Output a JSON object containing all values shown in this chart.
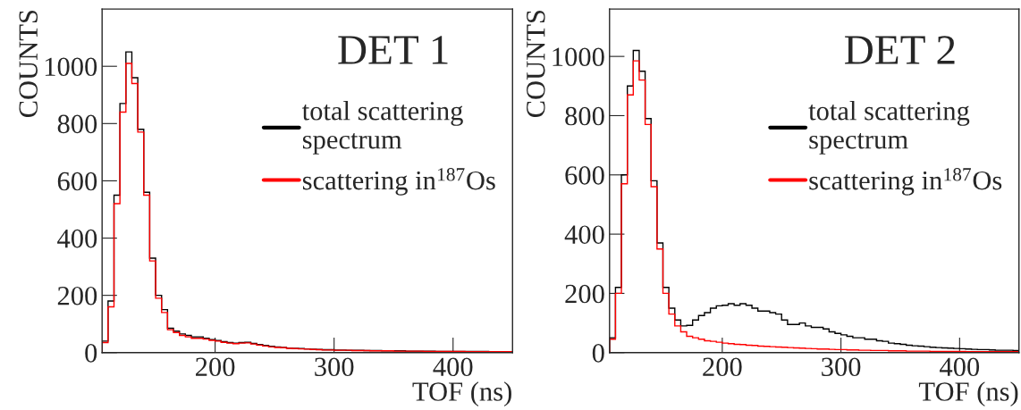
{
  "chart_data": [
    {
      "type": "histogram",
      "title": "DET 1",
      "xlabel": "TOF (ns)",
      "ylabel": "COUNTS",
      "xlim": [
        105,
        450
      ],
      "ylim": [
        0,
        1200
      ],
      "xticks": [
        200,
        300,
        400
      ],
      "yticks": [
        0,
        200,
        400,
        600,
        800,
        1000
      ],
      "legend": "top right",
      "grid": false,
      "bins": [
        105,
        110,
        115,
        120,
        125,
        130,
        135,
        140,
        145,
        150,
        155,
        160,
        165,
        170,
        175,
        180,
        185,
        190,
        195,
        200,
        205,
        210,
        215,
        220,
        225,
        230,
        235,
        240,
        245,
        250,
        255,
        260,
        265,
        270,
        275,
        280,
        285,
        290,
        295,
        300,
        305,
        310,
        315,
        320,
        325,
        330,
        335,
        340,
        345,
        350,
        355,
        360,
        365,
        370,
        375,
        380,
        385,
        390,
        395,
        400,
        405,
        410,
        415,
        420,
        425,
        430,
        435,
        440,
        445,
        450
      ],
      "series": [
        {
          "name": "total scattering\nspectrum",
          "color": "#000000",
          "values": [
            40,
            180,
            550,
            870,
            1050,
            960,
            780,
            560,
            330,
            200,
            150,
            85,
            75,
            65,
            60,
            55,
            55,
            50,
            45,
            42,
            38,
            35,
            33,
            35,
            36,
            32,
            28,
            25,
            22,
            20,
            18,
            16,
            15,
            14,
            13,
            12,
            11,
            10,
            10,
            9,
            9,
            8,
            8,
            8,
            7,
            7,
            7,
            6,
            6,
            6,
            6,
            5,
            5,
            5,
            5,
            5,
            4,
            4,
            4,
            4,
            4,
            4,
            4,
            4,
            4,
            3,
            3,
            3,
            3
          ]
        },
        {
          "name": "scattering in$^{187}$Os",
          "color": "#ff0000",
          "values": [
            35,
            160,
            520,
            840,
            1010,
            940,
            770,
            550,
            320,
            190,
            140,
            80,
            70,
            60,
            55,
            50,
            50,
            47,
            43,
            40,
            36,
            33,
            31,
            33,
            34,
            30,
            26,
            23,
            20,
            18,
            17,
            15,
            14,
            13,
            12,
            11,
            10,
            9,
            9,
            8,
            8,
            8,
            7,
            7,
            7,
            6,
            6,
            6,
            6,
            5,
            5,
            5,
            5,
            5,
            4,
            4,
            4,
            4,
            4,
            4,
            4,
            3,
            3,
            3,
            3,
            3,
            3,
            3,
            3
          ]
        }
      ]
    },
    {
      "type": "histogram",
      "title": "DET 2",
      "xlabel": "TOF (ns)",
      "ylabel": "COUNTS",
      "xlim": [
        105,
        450
      ],
      "ylim": [
        0,
        1160
      ],
      "xticks": [
        200,
        300,
        400
      ],
      "yticks": [
        0,
        200,
        400,
        600,
        800,
        1000
      ],
      "legend": "top right",
      "grid": false,
      "bins": [
        105,
        110,
        115,
        120,
        125,
        130,
        135,
        140,
        145,
        150,
        155,
        160,
        165,
        170,
        175,
        180,
        185,
        190,
        195,
        200,
        205,
        210,
        215,
        220,
        225,
        230,
        235,
        240,
        245,
        250,
        255,
        260,
        265,
        270,
        275,
        280,
        285,
        290,
        295,
        300,
        305,
        310,
        315,
        320,
        325,
        330,
        335,
        340,
        345,
        350,
        355,
        360,
        365,
        370,
        375,
        380,
        385,
        390,
        395,
        400,
        405,
        410,
        415,
        420,
        425,
        430,
        435,
        440,
        445,
        450
      ],
      "series": [
        {
          "name": "total scattering\nspectrum",
          "color": "#000000",
          "values": [
            50,
            220,
            600,
            900,
            1020,
            950,
            790,
            580,
            370,
            220,
            150,
            110,
            90,
            92,
            110,
            125,
            135,
            150,
            158,
            160,
            165,
            160,
            165,
            160,
            150,
            140,
            140,
            135,
            130,
            110,
            95,
            95,
            100,
            90,
            85,
            85,
            80,
            70,
            65,
            60,
            55,
            50,
            50,
            45,
            45,
            40,
            38,
            32,
            30,
            28,
            25,
            23,
            22,
            20,
            18,
            17,
            16,
            15,
            14,
            13,
            12,
            11,
            10,
            10,
            9,
            8,
            8,
            8,
            7
          ]
        },
        {
          "name": "scattering in$^{187}$Os",
          "color": "#ff0000",
          "values": [
            45,
            200,
            570,
            870,
            985,
            920,
            770,
            560,
            350,
            200,
            130,
            90,
            70,
            55,
            50,
            45,
            40,
            38,
            35,
            32,
            30,
            28,
            27,
            25,
            24,
            22,
            21,
            20,
            19,
            18,
            17,
            16,
            15,
            14,
            13,
            12,
            12,
            11,
            10,
            10,
            9,
            9,
            8,
            8,
            7,
            7,
            7,
            6,
            6,
            6,
            5,
            5,
            5,
            5,
            4,
            4,
            4,
            4,
            4,
            4,
            3,
            3,
            3,
            3,
            3,
            3,
            3,
            3,
            3
          ]
        }
      ]
    }
  ]
}
